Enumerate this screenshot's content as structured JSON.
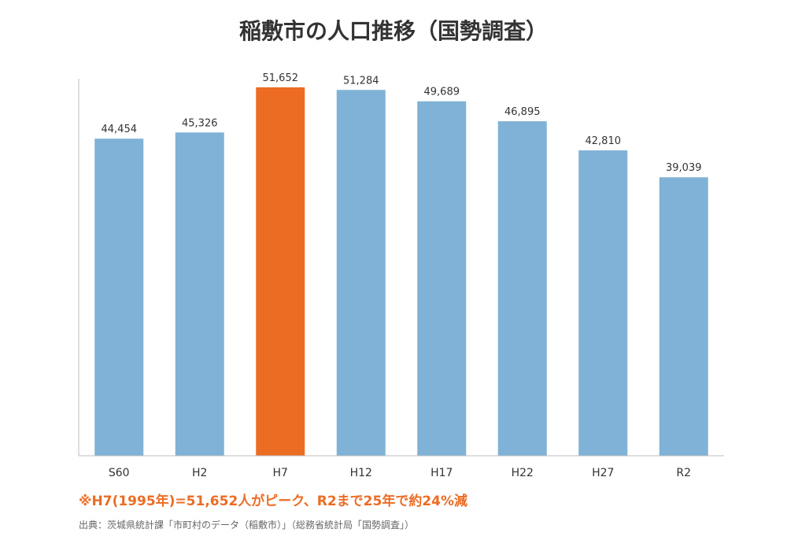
{
  "title": "稲敷市の人口推移（国勢調査）",
  "colors": {
    "bar_default": "#7FB2D6",
    "bar_highlight": "#EC6C24",
    "note": "#EC6C24",
    "axis": "#BDBDBD"
  },
  "chart_data": {
    "type": "bar",
    "title": "稲敷市の人口推移（国勢調査）",
    "categories": [
      "S60",
      "H2",
      "H7",
      "H12",
      "H17",
      "H22",
      "H27",
      "R2"
    ],
    "values": [
      44454,
      45326,
      51652,
      51284,
      49689,
      46895,
      42810,
      39039
    ],
    "data_labels": [
      "44,454",
      "45,326",
      "51,652",
      "51,284",
      "49,689",
      "46,895",
      "42,810",
      "39,039"
    ],
    "highlight_index": 2,
    "ylim": [
      0,
      56000
    ],
    "xlabel": "",
    "ylabel": "",
    "grid": false,
    "legend": "none"
  },
  "note": "※H7(1995年)=51,652人がピーク、R2まで25年で約24%減",
  "source": "出典：茨城県統計課「市町村のデータ（稲敷市）」（総務省統計局「国勢調査」）"
}
